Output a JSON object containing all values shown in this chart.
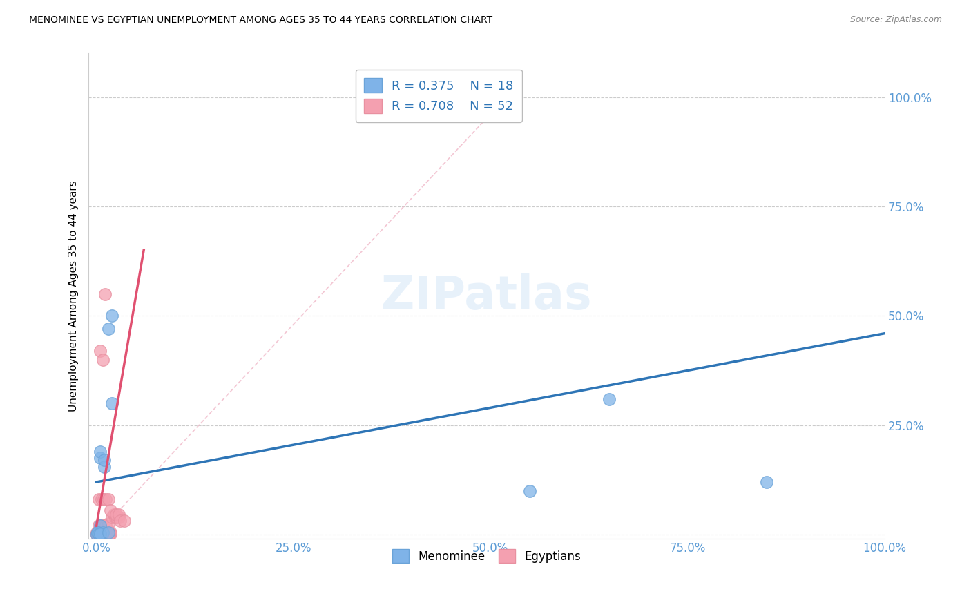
{
  "title": "MENOMINEE VS EGYPTIAN UNEMPLOYMENT AMONG AGES 35 TO 44 YEARS CORRELATION CHART",
  "source": "Source: ZipAtlas.com",
  "tick_color": "#5b9bd5",
  "ylabel": "Unemployment Among Ages 35 to 44 years",
  "menominee_color": "#7fb3e8",
  "egyptian_color": "#f4a0b0",
  "menominee_edge_color": "#6aa3d8",
  "egyptian_edge_color": "#e890a0",
  "menominee_label": "Menominee",
  "egyptian_label": "Egyptians",
  "menominee_R": 0.375,
  "menominee_N": 18,
  "egyptian_R": 0.708,
  "egyptian_N": 52,
  "blue_line_color": "#2e75b6",
  "pink_line_color": "#e05070",
  "diag_line_color": "#f0b8c8",
  "menominee_points_x": [
    0.005,
    0.01,
    0.0,
    0.005,
    0.002,
    0.008,
    0.001,
    0.003,
    0.005,
    0.015,
    0.02,
    0.02,
    0.65,
    0.85,
    0.55,
    0.005,
    0.01,
    0.015
  ],
  "menominee_points_y": [
    0.175,
    0.155,
    0.0,
    0.02,
    0.005,
    0.005,
    0.005,
    0.002,
    0.002,
    0.47,
    0.5,
    0.3,
    0.31,
    0.12,
    0.1,
    0.19,
    0.17,
    0.005
  ],
  "egyptian_points_x": [
    0.0,
    0.002,
    0.004,
    0.006,
    0.008,
    0.01,
    0.012,
    0.014,
    0.016,
    0.018,
    0.003,
    0.006,
    0.009,
    0.012,
    0.015,
    0.0,
    0.002,
    0.004,
    0.006,
    0.008,
    0.01,
    0.012,
    0.014,
    0.016,
    0.018,
    0.02,
    0.022,
    0.024,
    0.026,
    0.028,
    0.0,
    0.002,
    0.004,
    0.006,
    0.008,
    0.01,
    0.012,
    0.014,
    0.016,
    0.003,
    0.006,
    0.009,
    0.012,
    0.015,
    0.018,
    0.005,
    0.008,
    0.011,
    0.025,
    0.028,
    0.03,
    0.035
  ],
  "egyptian_points_y": [
    0.005,
    0.005,
    0.005,
    0.005,
    0.005,
    0.005,
    0.005,
    0.005,
    0.005,
    0.005,
    0.02,
    0.02,
    0.02,
    0.02,
    0.025,
    0.002,
    0.002,
    0.002,
    0.002,
    0.002,
    0.002,
    0.002,
    0.002,
    0.002,
    0.002,
    0.04,
    0.045,
    0.04,
    0.04,
    0.04,
    0.0,
    0.0,
    0.0,
    0.0,
    0.0,
    0.0,
    0.0,
    0.0,
    0.0,
    0.08,
    0.08,
    0.08,
    0.08,
    0.08,
    0.055,
    0.42,
    0.4,
    0.55,
    0.045,
    0.045,
    0.032,
    0.032
  ],
  "blue_line_x": [
    0.0,
    1.0
  ],
  "blue_line_y": [
    0.12,
    0.46
  ],
  "pink_line_x": [
    0.0,
    0.06
  ],
  "pink_line_y": [
    0.02,
    0.65
  ],
  "diag_line_x": [
    0.0,
    0.52
  ],
  "diag_line_y": [
    0.0,
    1.0
  ],
  "xlim": [
    -0.01,
    1.0
  ],
  "ylim": [
    -0.01,
    1.1
  ],
  "xticks": [
    0.0,
    0.25,
    0.5,
    0.75,
    1.0
  ],
  "yticks": [
    0.0,
    0.25,
    0.5,
    0.75,
    1.0
  ],
  "xticklabels": [
    "0.0%",
    "25.0%",
    "50.0%",
    "75.0%",
    "100.0%"
  ],
  "yticklabels": [
    "",
    "25.0%",
    "50.0%",
    "75.0%",
    "100.0%"
  ],
  "background_color": "#ffffff",
  "grid_color": "#cccccc"
}
